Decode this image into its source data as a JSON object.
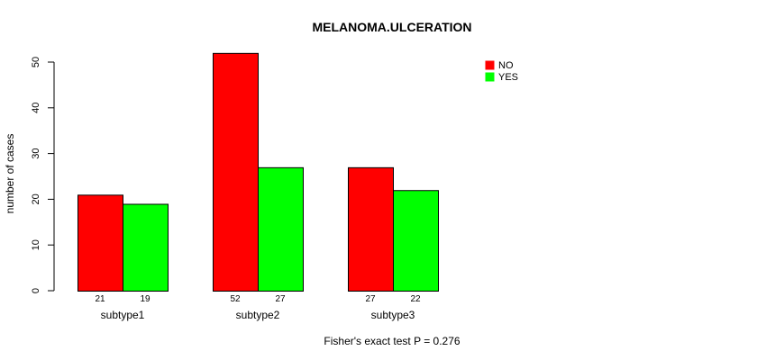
{
  "chart_data": {
    "type": "bar",
    "title": "MELANOMA.ULCERATION",
    "xlabel": "",
    "ylabel": "number of cases",
    "ylim": [
      0,
      50
    ],
    "yticks": [
      0,
      10,
      20,
      30,
      40,
      50
    ],
    "categories": [
      "subtype1",
      "subtype2",
      "subtype3"
    ],
    "series": [
      {
        "name": "NO",
        "color": "#ff0000",
        "values": [
          21,
          52,
          27
        ]
      },
      {
        "name": "YES",
        "color": "#00ff00",
        "values": [
          19,
          27,
          22
        ]
      }
    ],
    "legend_position": "top-right",
    "footnote": "Fisher's exact test P = 0.276"
  }
}
